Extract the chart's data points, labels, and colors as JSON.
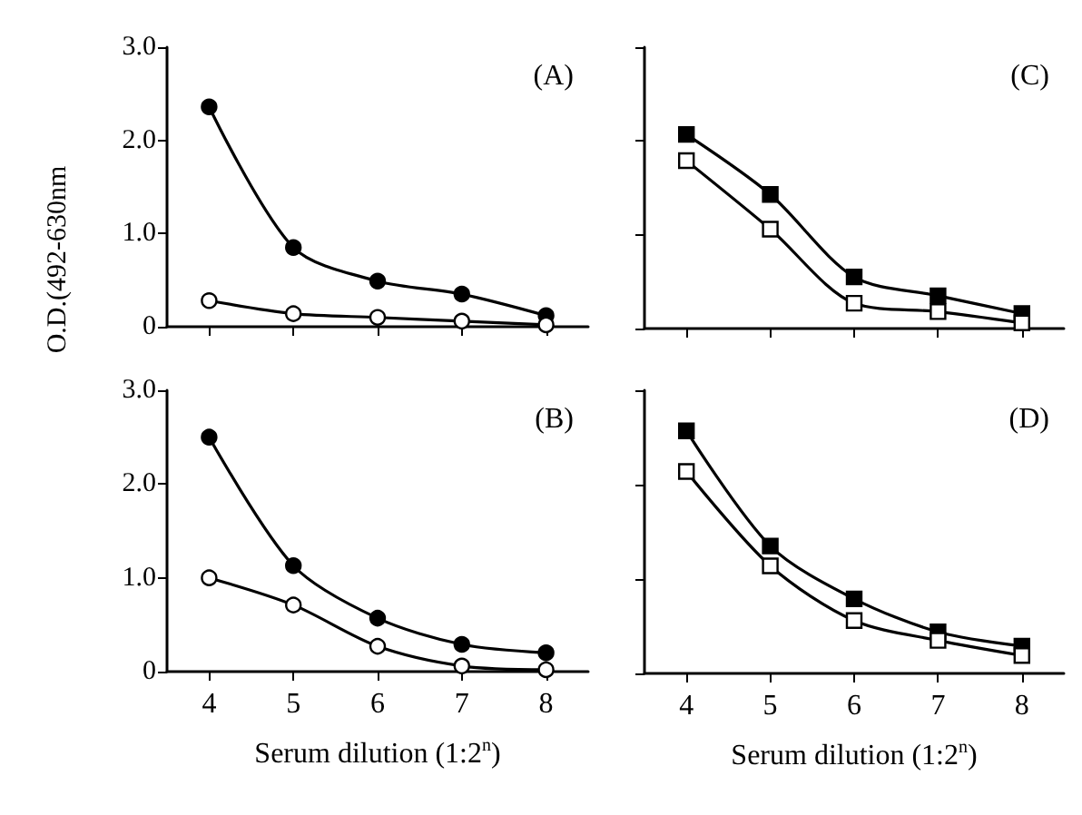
{
  "chart_data": [
    {
      "type": "line",
      "ylabel": "O.D.(492-630nm",
      "annotations": [
        "(A)"
      ],
      "marker": "circle",
      "tick_labels": "y",
      "xlim": [
        3.5,
        8.5
      ],
      "xticks": [
        4,
        5,
        6,
        7,
        8
      ],
      "ylim": [
        0,
        3
      ],
      "yticks": [
        0,
        {
          "value": 1,
          "label": "1.0"
        },
        {
          "value": 2,
          "label": "2.0"
        },
        {
          "value": 3,
          "label": "3.0"
        }
      ],
      "x": [
        4,
        5,
        6,
        7,
        8
      ],
      "series": [
        {
          "color": "#000000",
          "values": [
            2.36,
            0.85,
            0.49,
            0.35,
            0.12
          ]
        },
        {
          "color": "#ffffff",
          "values": [
            0.28,
            0.14,
            0.1,
            0.06,
            0.02
          ]
        }
      ]
    },
    {
      "type": "line",
      "annotations": [
        "(C)"
      ],
      "marker": "square",
      "tick_labels": false,
      "xlim": [
        3.5,
        8.5
      ],
      "xticks": [
        4,
        5,
        6,
        7,
        8
      ],
      "ylim": [
        0,
        3
      ],
      "yticks": [
        0,
        1,
        2,
        3
      ],
      "x": [
        4,
        5,
        6,
        7,
        8
      ],
      "series": [
        {
          "color": "#000000",
          "values": [
            2.07,
            1.43,
            0.55,
            0.35,
            0.16
          ]
        },
        {
          "color": "#ffffff",
          "values": [
            1.79,
            1.06,
            0.27,
            0.18,
            0.06
          ]
        }
      ]
    },
    {
      "type": "line",
      "xlabel": "Serum dilution (1:2$^{n}$)",
      "annotations": [
        "(B)"
      ],
      "marker": "circle",
      "xlim": [
        3.5,
        8.5
      ],
      "xticks": [
        4,
        5,
        6,
        7,
        8
      ],
      "ylim": [
        0,
        3
      ],
      "yticks": [
        0,
        {
          "value": 1,
          "label": "1.0"
        },
        {
          "value": 2,
          "label": "2.0"
        },
        {
          "value": 3,
          "label": "3.0"
        }
      ],
      "x": [
        4,
        5,
        6,
        7,
        8
      ],
      "series": [
        {
          "color": "#000000",
          "values": [
            2.5,
            1.13,
            0.57,
            0.29,
            0.2
          ]
        },
        {
          "color": "#ffffff",
          "values": [
            1.0,
            0.71,
            0.27,
            0.06,
            0.02
          ]
        }
      ]
    },
    {
      "type": "line",
      "xlabel": "Serum dilution (1:2$^{n}$)",
      "annotations": [
        "(D)"
      ],
      "marker": "square",
      "tick_labels": "x",
      "xlim": [
        3.5,
        8.5
      ],
      "xticks": [
        4,
        5,
        6,
        7,
        8
      ],
      "ylim": [
        0,
        3
      ],
      "yticks": [
        0,
        1,
        2,
        3
      ],
      "x": [
        4,
        5,
        6,
        7,
        8
      ],
      "series": [
        {
          "color": "#000000",
          "values": [
            2.57,
            1.35,
            0.79,
            0.44,
            0.29
          ]
        },
        {
          "color": "#ffffff",
          "values": [
            2.14,
            1.14,
            0.56,
            0.35,
            0.19
          ]
        }
      ]
    }
  ]
}
